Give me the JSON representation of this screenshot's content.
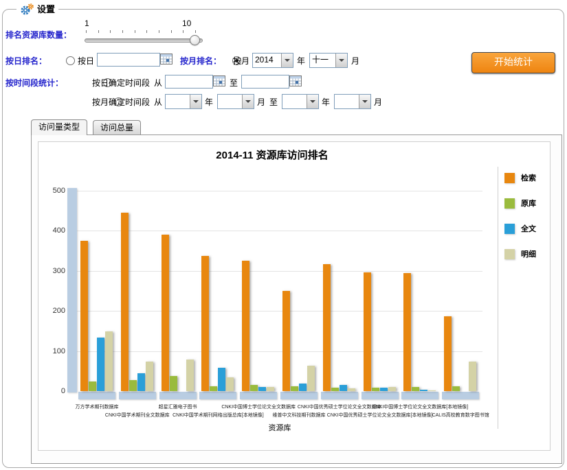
{
  "settings": {
    "group_title": "设置",
    "rank_count_label": "排名资源库数量：",
    "slider": {
      "min_label": "1",
      "max_label": "10",
      "ticks": 10,
      "value": 10
    },
    "daily_rank_label": "按日排名：",
    "daily_radio_label": "按日",
    "daily_input_value": "",
    "monthly_rank_label": "按月排名：",
    "monthly_radio_label": "按月",
    "year_value": "2014",
    "year_suffix": "年",
    "month_value": "十一",
    "month_suffix": "月",
    "start_button": "开始统计",
    "period_label": "按时间段统计：",
    "day_period_label": "按日确定时间段",
    "from_label": "从",
    "to_label": "至",
    "month_period_label": "按月确定时间段",
    "radios": {
      "daily": false,
      "monthly": true,
      "day_period": false,
      "month_period": false
    }
  },
  "tabs": [
    {
      "label": "访问量类型",
      "active": true
    },
    {
      "label": "访问总量",
      "active": false
    }
  ],
  "chart_data": {
    "type": "bar",
    "title": "2014-11 资源库访问排名",
    "xlabel": "资源库",
    "ylabel": "",
    "ylim": [
      0,
      500
    ],
    "yticks": [
      0,
      100,
      200,
      300,
      400,
      500
    ],
    "grid": true,
    "legend_position": "right",
    "categories": [
      "万方学术期刊数据库",
      "CNKI中国学术期刊全文数据库",
      "超星汇雅电子图书",
      "CNKI中国学术期刊网络出版总库[本地镜像]",
      "CNKI中国博士学位论文全文数据库",
      "维普中文科技期刊数据库",
      "CNKI中国优秀硕士学位论文全文数据库",
      "CNKI中国优秀硕士学位论文全文数据库[本地镜像]",
      "CNKI中国博士学位论文全文数据库[本地镜像]",
      "CALIS高校教育数字图书馆"
    ],
    "series": [
      {
        "name": "检索",
        "color": "#e8870f",
        "values": [
          375,
          445,
          390,
          338,
          326,
          250,
          316,
          296,
          295,
          186
        ]
      },
      {
        "name": "原库",
        "color": "#9abb3d",
        "values": [
          24,
          27,
          38,
          12,
          16,
          12,
          8,
          9,
          10,
          12
        ]
      },
      {
        "name": "全文",
        "color": "#2a9fd8",
        "values": [
          133,
          45,
          0,
          58,
          11,
          19,
          15,
          8,
          4,
          0
        ]
      },
      {
        "name": "明细",
        "color": "#d4d2a6",
        "values": [
          149,
          73,
          78,
          34,
          11,
          63,
          7,
          11,
          2,
          74
        ]
      }
    ]
  }
}
